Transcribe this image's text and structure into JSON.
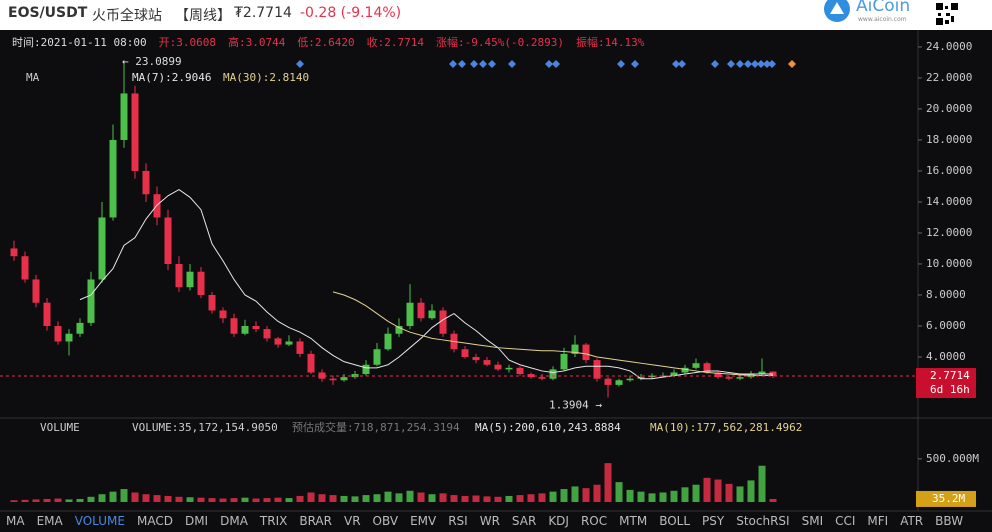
{
  "header": {
    "pair": "EOS/USDT",
    "exchange": "火币全球站",
    "period": "【周线】",
    "price": "₮2.7714",
    "change": "-0.28 (-9.14%)",
    "logo": "AiCoin",
    "site": "www.aicoin.com"
  },
  "info": [
    "时间:2021-01-11 08:00",
    "开:3.0608",
    "高:3.0744",
    "低:2.6420",
    "收:2.7714",
    "涨幅:-9.45%(-0.2893)",
    "振幅:14.13%"
  ],
  "ma_info": {
    "name": "MA",
    "ma7": "MA(7):2.9046",
    "ma30": "MA(30):2.8140"
  },
  "volume_info": {
    "name": "VOLUME",
    "volume": "VOLUME:35,172,154.9050",
    "estimate": "预估成交量:718,871,254.3194",
    "ma5": "MA(5):200,610,243.8884",
    "ma10": "MA(10):177,562,281.4962"
  },
  "tabs": [
    "MA",
    "EMA",
    "VOLUME",
    "MACD",
    "DMI",
    "DMA",
    "TRIX",
    "BRAR",
    "VR",
    "OBV",
    "EMV",
    "RSI",
    "WR",
    "SAR",
    "KDJ",
    "ROC",
    "MTM",
    "BOLL",
    "PSY",
    "StochRSI",
    "SMI",
    "CCI",
    "MFI",
    "ATR",
    "BBW"
  ],
  "chart_data": {
    "type": "candlestick",
    "up_color": "#4cc04a",
    "down_color": "#e8304a",
    "ma7_color": "#e6e6e6",
    "ma30_color": "#e3d28f",
    "ylim": [
      0,
      24.77
    ],
    "yticks": [
      {
        "value": 4,
        "label": "4.0000"
      },
      {
        "value": 6,
        "label": "6.0000"
      },
      {
        "value": 8,
        "label": "8.0000"
      },
      {
        "value": 10,
        "label": "10.0000"
      },
      {
        "value": 12,
        "label": "12.0000"
      },
      {
        "value": 14,
        "label": "14.0000"
      },
      {
        "value": 16,
        "label": "16.0000"
      },
      {
        "value": 18,
        "label": "18.0000"
      },
      {
        "value": 20,
        "label": "20.0000"
      },
      {
        "value": 22,
        "label": "22.0000"
      },
      {
        "value": 24,
        "label": "24.0000"
      }
    ],
    "open": [
      11,
      10.5,
      9,
      7.5,
      6,
      5,
      5.5,
      6.2,
      9,
      13,
      18,
      21,
      16,
      14.5,
      13,
      10,
      8.5,
      9.5,
      8,
      7,
      6.5,
      5.5,
      6,
      5.8,
      5.2,
      4.8,
      5,
      4.2,
      3,
      2.6,
      2.5,
      2.7,
      2.9,
      3.5,
      4.5,
      5.5,
      6,
      7.5,
      6.5,
      7,
      5.5,
      4.5,
      4,
      3.8,
      3.5,
      3.2,
      3.3,
      2.9,
      2.7,
      2.6,
      3.2,
      4.2,
      4.8,
      3.8,
      2.6,
      2.2,
      2.5,
      2.6,
      2.7,
      2.8,
      2.8,
      3,
      3.3,
      3.6,
      3,
      2.7,
      2.6,
      2.7,
      2.9,
      3.0608
    ],
    "high": [
      11.5,
      10.8,
      9.3,
      7.8,
      6.3,
      5.8,
      6.5,
      9.5,
      14,
      19,
      23.0899,
      21.5,
      16.5,
      15,
      13.5,
      10.5,
      10,
      9.8,
      8.2,
      7.2,
      6.8,
      6.4,
      6.3,
      6,
      5.3,
      5.4,
      5.2,
      4.4,
      3.2,
      2.8,
      2.9,
      3.1,
      3.8,
      4.9,
      5.9,
      6.5,
      8.7,
      7.8,
      7.4,
      7.2,
      5.7,
      4.7,
      4.2,
      4,
      3.7,
      3.5,
      3.4,
      3,
      2.9,
      3.4,
      4.6,
      5.4,
      4.9,
      3.9,
      2.7,
      2.6,
      2.8,
      2.9,
      2.95,
      3,
      3.2,
      3.5,
      3.9,
      3.7,
      3.1,
      2.8,
      2.9,
      3.1,
      3.9,
      3.0744
    ],
    "low": [
      10.2,
      8.8,
      7.2,
      5.7,
      4.8,
      4.1,
      5.3,
      6,
      8.8,
      12.8,
      17.5,
      15.5,
      14,
      12.5,
      9.6,
      8.2,
      8.3,
      7.8,
      6.8,
      6.2,
      5.3,
      5.4,
      5.6,
      5,
      4.6,
      4.7,
      4,
      2.9,
      2.4,
      2.2,
      2.4,
      2.6,
      2.8,
      3.4,
      4.4,
      5.3,
      5.8,
      6.3,
      6.4,
      5.3,
      4.3,
      3.9,
      3.6,
      3.4,
      3.1,
      3,
      2.8,
      2.6,
      2.5,
      2.5,
      3.1,
      4,
      3.6,
      2.4,
      1.3904,
      2.1,
      2.4,
      2.5,
      2.6,
      2.7,
      2.7,
      2.9,
      3.2,
      2.9,
      2.6,
      2.5,
      2.5,
      2.6,
      2.8,
      2.642
    ],
    "close": [
      10.5,
      9,
      7.5,
      6,
      5,
      5.5,
      6.2,
      9,
      13,
      18,
      21,
      16,
      14.5,
      13,
      10,
      8.5,
      9.5,
      8,
      7,
      6.5,
      5.5,
      6,
      5.8,
      5.2,
      4.8,
      5,
      4.2,
      3,
      2.6,
      2.5,
      2.7,
      2.9,
      3.5,
      4.5,
      5.5,
      6,
      7.5,
      6.5,
      7,
      5.5,
      4.5,
      4,
      3.8,
      3.5,
      3.2,
      3.3,
      2.9,
      2.7,
      2.6,
      3.2,
      4.2,
      4.8,
      3.8,
      2.6,
      2.2,
      2.5,
      2.6,
      2.7,
      2.8,
      2.8,
      3,
      3.3,
      3.6,
      3,
      2.7,
      2.6,
      2.7,
      2.9,
      3.0608,
      2.7714
    ],
    "ma7": [
      null,
      null,
      null,
      null,
      null,
      null,
      7.7,
      8.0,
      8.9,
      9.7,
      11.2,
      11.7,
      12.9,
      13.8,
      14.4,
      14.8,
      14.3,
      13.5,
      11.3,
      10.2,
      9.0,
      8.0,
      7.6,
      6.9,
      6.3,
      5.9,
      5.6,
      5.2,
      4.6,
      4.1,
      3.7,
      3.5,
      3.3,
      3.3,
      3.5,
      4.0,
      4.6,
      5.2,
      5.9,
      6.4,
      6.8,
      6.2,
      5.7,
      5.1,
      4.6,
      3.8,
      3.5,
      3.3,
      3.1,
      3.0,
      3.1,
      3.3,
      3.4,
      3.4,
      3.4,
      3.3,
      3.1,
      2.6,
      2.6,
      2.7,
      2.8,
      2.9,
      3.0,
      3.1,
      3.1,
      3.0,
      2.9,
      2.9,
      2.9,
      2.9046
    ],
    "ma30": [
      null,
      null,
      null,
      null,
      null,
      null,
      null,
      null,
      null,
      null,
      null,
      null,
      null,
      null,
      null,
      null,
      null,
      null,
      null,
      null,
      null,
      null,
      null,
      null,
      null,
      null,
      null,
      null,
      null,
      8.2,
      8.0,
      7.7,
      7.3,
      6.8,
      6.3,
      5.9,
      5.6,
      5.4,
      5.2,
      5.1,
      5.0,
      4.9,
      4.8,
      4.7,
      4.6,
      4.55,
      4.5,
      4.45,
      4.4,
      4.4,
      4.35,
      4.3,
      4.2,
      4.0,
      3.9,
      3.8,
      3.7,
      3.6,
      3.5,
      3.4,
      3.3,
      3.2,
      3.1,
      3.0,
      2.95,
      2.9,
      2.85,
      2.82,
      2.8,
      2.814
    ],
    "annotations": [
      "← 23.0899",
      "1.3904 →",
      "6d 16h"
    ],
    "volume": [
      20000000,
      25000000,
      30000000,
      35000000,
      40000000,
      30000000,
      35000000,
      60000000,
      90000000,
      120000000,
      150000000,
      110000000,
      90000000,
      80000000,
      70000000,
      60000000,
      55000000,
      50000000,
      45000000,
      40000000,
      45000000,
      50000000,
      40000000,
      45000000,
      50000000,
      45000000,
      70000000,
      110000000,
      90000000,
      80000000,
      70000000,
      65000000,
      80000000,
      90000000,
      120000000,
      100000000,
      130000000,
      110000000,
      90000000,
      100000000,
      80000000,
      70000000,
      75000000,
      65000000,
      60000000,
      70000000,
      80000000,
      90000000,
      100000000,
      120000000,
      150000000,
      180000000,
      160000000,
      200000000,
      450000000,
      230000000,
      140000000,
      120000000,
      100000000,
      110000000,
      130000000,
      170000000,
      200000000,
      280000000,
      260000000,
      210000000,
      180000000,
      250000000,
      420000000,
      35172154.905
    ],
    "volume_labels": {
      "69": "35.2M"
    },
    "vlim": [
      0,
      950000000
    ],
    "vticks": [
      {
        "value": 500000000,
        "label": "500.000M"
      }
    ]
  }
}
